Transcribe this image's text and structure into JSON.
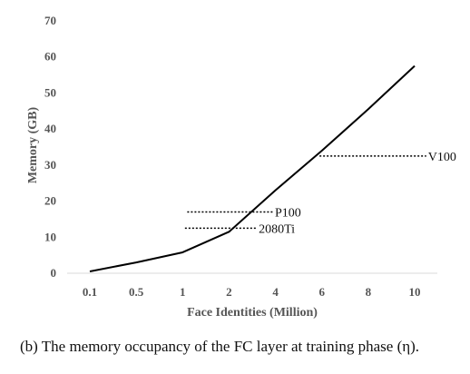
{
  "chart_data": {
    "type": "line",
    "xlabel": "Face Identities (Million)",
    "ylabel": "Memory (GB)",
    "categories": [
      "0.1",
      "0.5",
      "1",
      "2",
      "4",
      "6",
      "8",
      "10"
    ],
    "values": [
      0.5,
      3,
      5.8,
      11.5,
      23,
      34,
      45.5,
      57.5
    ],
    "ylim": [
      0,
      70
    ],
    "yticks": [
      0,
      10,
      20,
      30,
      40,
      50,
      60,
      70
    ],
    "grid": false,
    "legend": "none",
    "line_color": "#000000",
    "annotations": [
      {
        "label": "V100",
        "value": 32.5,
        "x_from": 4.95,
        "x_to": 7.25
      },
      {
        "label": "P100",
        "value": 17,
        "x_from": 2.1,
        "x_to": 3.95
      },
      {
        "label": "2080Ti",
        "value": 12.5,
        "x_from": 2.05,
        "x_to": 3.6
      }
    ]
  },
  "caption": "(b) The memory occupancy of the FC layer at training phase (η)."
}
